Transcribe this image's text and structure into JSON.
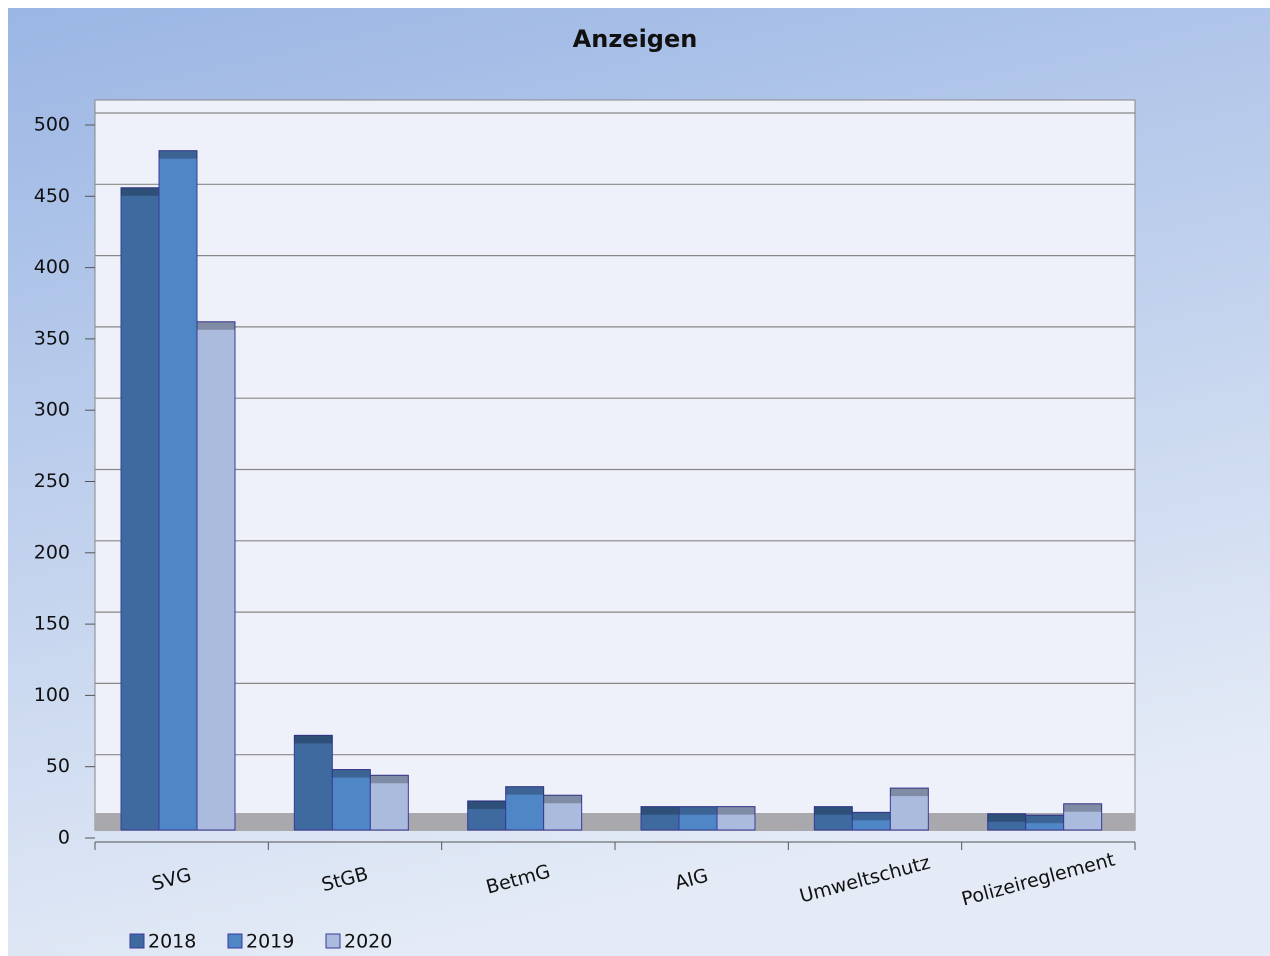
{
  "chart_data": {
    "type": "bar",
    "title": "Anzeigen",
    "categories": [
      "SVG",
      "StGB",
      "BetmG",
      "AIG",
      "Umweltschutz",
      "Polizeireglement"
    ],
    "series": [
      {
        "name": "2018",
        "color": "#3e6a9f",
        "values": [
          456,
          72,
          26,
          22,
          22,
          17
        ]
      },
      {
        "name": "2019",
        "color": "#4f86c6",
        "values": [
          482,
          48,
          36,
          22,
          18,
          16
        ]
      },
      {
        "name": "2020",
        "color": "#abbbdd",
        "values": [
          362,
          44,
          30,
          22,
          35,
          24
        ]
      }
    ],
    "ylim": [
      0,
      500
    ],
    "yticks": [
      0,
      50,
      100,
      150,
      200,
      250,
      300,
      350,
      400,
      450,
      500
    ],
    "grid": true,
    "legend": "bottom-left"
  }
}
